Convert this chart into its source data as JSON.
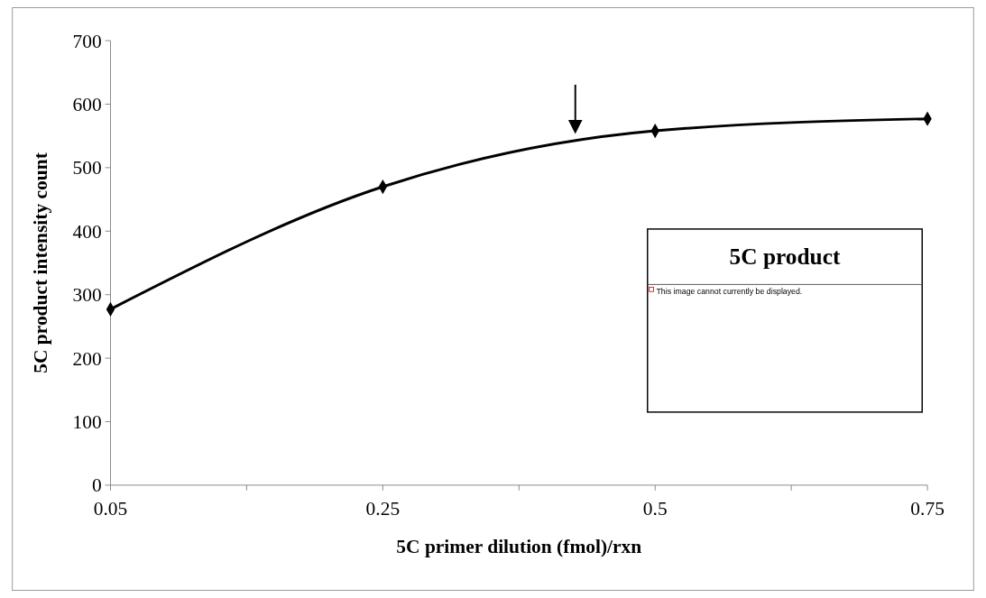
{
  "chart_data": {
    "type": "line",
    "xlabel": "5C primer dilution (fmol)/rxn",
    "ylabel": "5C product intensity count",
    "categories": [
      "0.05",
      "0.25",
      "0.5",
      "0.75"
    ],
    "series": [
      {
        "color": "#000000",
        "values": [
          277,
          470,
          558,
          577
        ]
      }
    ],
    "ylim": [
      0,
      700
    ],
    "yticks": [
      0,
      100,
      200,
      300,
      400,
      500,
      600,
      700
    ],
    "grid": false,
    "marker": "diamond",
    "line_style": "solid",
    "annotations": [
      "5C product",
      "This image cannot currently be displayed."
    ]
  }
}
